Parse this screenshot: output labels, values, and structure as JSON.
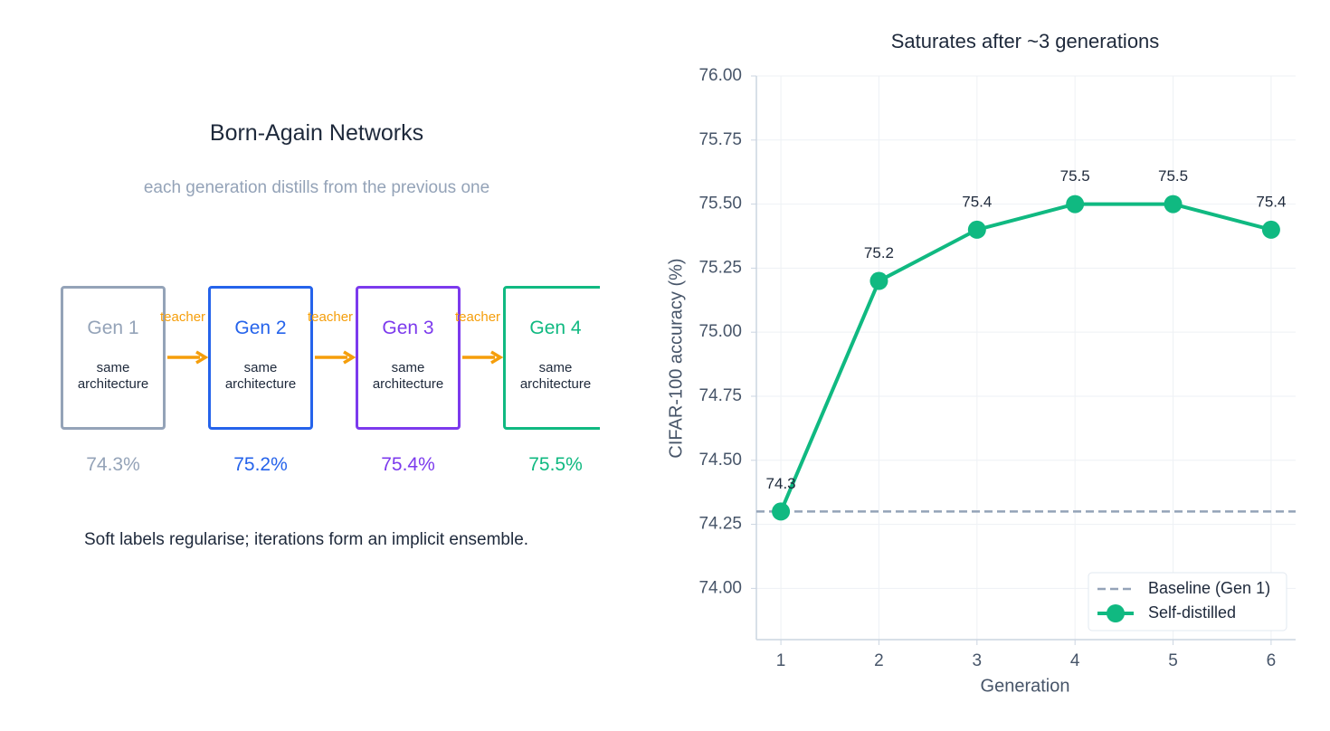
{
  "diagram": {
    "title": "Born-Again Networks",
    "subtitle": "each generation distills from the previous one",
    "nodes": [
      {
        "label": "Gen 1",
        "description": "same architecture",
        "accuracy": "74.3%",
        "color": "#94a3b8"
      },
      {
        "label": "Gen 2",
        "description": "same architecture",
        "accuracy": "75.2%",
        "color": "#2563eb"
      },
      {
        "label": "Gen 3",
        "description": "same architecture",
        "accuracy": "75.4%",
        "color": "#7c3aed"
      },
      {
        "label": "Gen 4",
        "description": "same architecture",
        "accuracy": "75.5%",
        "color": "#10b981"
      }
    ],
    "edges": [
      {
        "label": "teacher"
      },
      {
        "label": "teacher"
      },
      {
        "label": "teacher"
      }
    ],
    "footer": "Soft labels regularise; iterations form an implicit ensemble."
  },
  "chart_data": {
    "type": "line",
    "title": "Saturates after ~3 generations",
    "xlabel": "Generation",
    "ylabel": "CIFAR-100 accuracy (%)",
    "x": [
      1,
      2,
      3,
      4,
      5,
      6
    ],
    "series": [
      {
        "name": "Self-distilled",
        "color": "#10b981",
        "values": [
          74.3,
          75.2,
          75.4,
          75.5,
          75.5,
          75.4
        ]
      }
    ],
    "hlines": [
      {
        "name": "Baseline (Gen 1)",
        "value": 74.3,
        "color": "#94a3b8"
      }
    ],
    "xlim": [
      0.75,
      6.25
    ],
    "ylim": [
      73.8,
      76.0
    ],
    "xticks": [
      1,
      2,
      3,
      4,
      5,
      6
    ],
    "yticks": [
      {
        "value": 74.0,
        "label": "74.00"
      },
      {
        "value": 74.25,
        "label": "74.25"
      },
      {
        "value": 74.5,
        "label": "74.50"
      },
      {
        "value": 74.75,
        "label": "74.75"
      },
      {
        "value": 75.0,
        "label": "75.00"
      },
      {
        "value": 75.25,
        "label": "75.25"
      },
      {
        "value": 75.5,
        "label": "75.50"
      },
      {
        "value": 75.75,
        "label": "75.75"
      },
      {
        "value": 76.0,
        "label": "76.00"
      }
    ],
    "grid": true,
    "legend": "lower right"
  }
}
